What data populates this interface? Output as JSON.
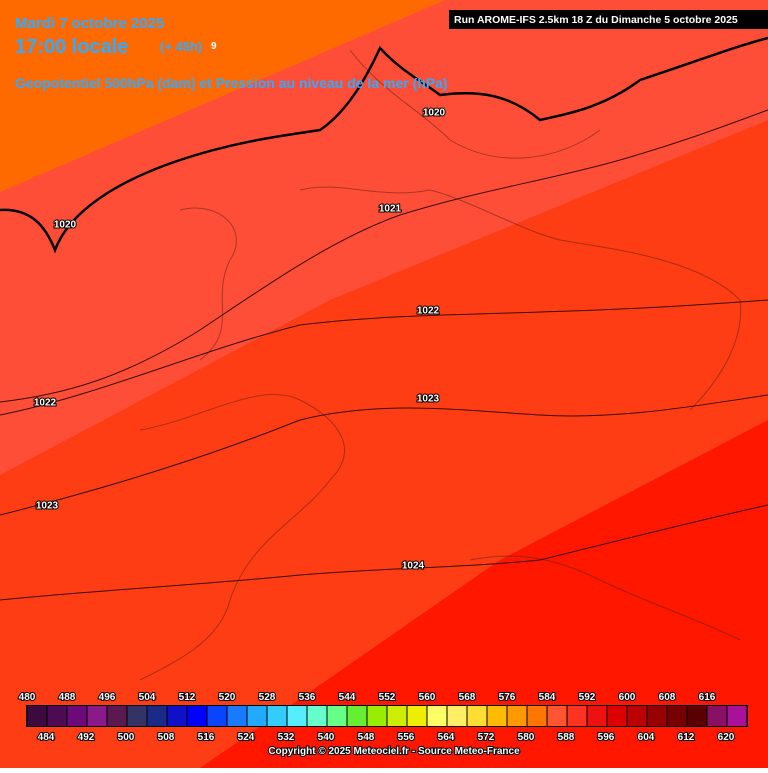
{
  "header": {
    "date": "Mardi 7 octobre 2025",
    "time": "17:00 locale",
    "lead": "(+ 45h)",
    "lead_mark": "9",
    "subtitle": "Geopotentiel 500hPa (dam) et Pression au niveau de la mer (hPa)",
    "run": "Run AROME-IFS 2.5km 18 Z du Dimanche 5 octobre 2025"
  },
  "isobar_labels": [
    "1020",
    "1020",
    "1021",
    "1022",
    "1022",
    "1023",
    "1023",
    "1024"
  ],
  "legend": {
    "top_labels": [
      480,
      488,
      496,
      504,
      512,
      520,
      528,
      536,
      544,
      552,
      560,
      568,
      576,
      584,
      592,
      600,
      608,
      616
    ],
    "bottom_labels": [
      484,
      492,
      500,
      508,
      516,
      524,
      532,
      540,
      548,
      556,
      564,
      572,
      580,
      588,
      596,
      604,
      612,
      620
    ]
  },
  "footer": {
    "copyright": "Copyright © 2025 Meteociel.fr - Source Meteo-France"
  }
}
